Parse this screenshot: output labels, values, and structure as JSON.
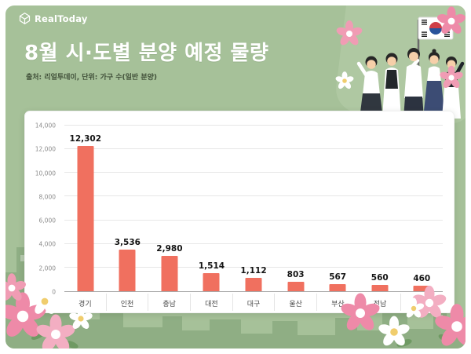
{
  "brand": {
    "logo_text": "RealToday"
  },
  "header": {
    "title": "8월 시·도별 분양 예정 물량",
    "subtitle": "출처: 리얼투데이, 단위: 가구 수(일반 분양)"
  },
  "colors": {
    "background_green": "#a6c199",
    "skyline_green": "#8fae84",
    "bar_coral": "#f0705f",
    "flower_pink": "#f09cb4",
    "title_white": "#ffffff",
    "subtitle_dark_green": "#41513a"
  },
  "chart_data": {
    "type": "bar",
    "title": "8월 시·도별 분양 예정 물량",
    "categories": [
      "경기",
      "인천",
      "충남",
      "대전",
      "대구",
      "울산",
      "부산",
      "전남",
      "서울"
    ],
    "values": [
      12302,
      3536,
      2980,
      1514,
      1112,
      803,
      567,
      560,
      460
    ],
    "value_labels": [
      "12,302",
      "3,536",
      "2,980",
      "1,514",
      "1,112",
      "803",
      "567",
      "560",
      "460"
    ],
    "xlabel": "",
    "ylabel": "",
    "ylim": [
      0,
      14000
    ],
    "ytick_interval": 2000,
    "yticks": [
      "0",
      "2,000",
      "4,000",
      "6,000",
      "8,000",
      "10,000",
      "12,000",
      "14,000"
    ],
    "grid": true,
    "legend": false,
    "bar_color": "#f0705f"
  }
}
